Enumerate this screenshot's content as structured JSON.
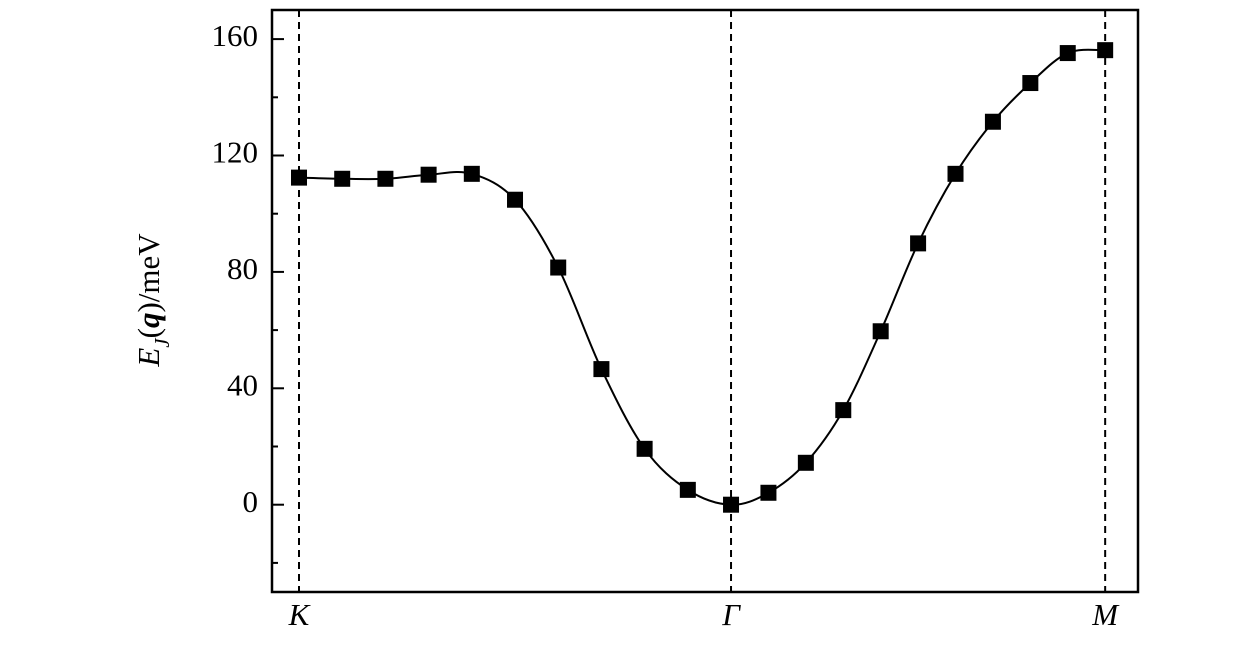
{
  "chart_data": {
    "type": "line",
    "ylabel_parts": [
      "E",
      "J",
      "(",
      "q",
      ")",
      "/meV"
    ],
    "x": [
      0,
      0.1,
      0.2,
      0.3,
      0.4,
      0.5,
      0.6,
      0.7,
      0.8,
      0.9,
      1.0,
      1.0866,
      1.1732,
      1.2598,
      1.3464,
      1.433,
      1.5196,
      1.6062,
      1.6928,
      1.7794,
      1.866
    ],
    "series": [
      {
        "color": "#000000",
        "marker": "square",
        "line": true,
        "values": [
          112.4,
          112,
          112,
          113.4,
          113.7,
          104.8,
          81.5,
          46.6,
          19.2,
          5.1,
          0,
          4.1,
          14.4,
          32.5,
          59.6,
          89.8,
          113.7,
          131.6,
          144.9,
          155.2,
          156.2
        ]
      }
    ],
    "xlim": [
      -0.0625,
      1.942
    ],
    "xticks": [
      {
        "value": 0,
        "label": "K"
      },
      {
        "value": 1,
        "label": "Γ"
      },
      {
        "value": 1.866,
        "label": "M"
      }
    ],
    "xtick_lines": "dashed",
    "ylim": [
      -30,
      170
    ],
    "yticks": [
      0,
      40,
      80,
      120,
      160
    ],
    "minor_yticks": [
      -20,
      20,
      60,
      100,
      140
    ]
  }
}
